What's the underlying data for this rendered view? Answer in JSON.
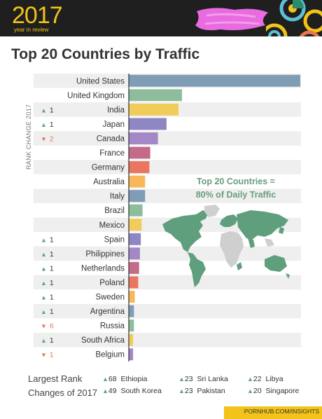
{
  "header": {
    "year": "2017",
    "subtitle": "year in review",
    "brand_color": "#f2c318"
  },
  "title": "Top 20 Countries by Traffic",
  "chart_data": {
    "type": "bar",
    "orientation": "horizontal",
    "ylabel": "RANK CHANGE 2017",
    "xlabel": "",
    "xlim": [
      0,
      100
    ],
    "grid": false,
    "categories": [
      "United States",
      "United Kingdom",
      "India",
      "Japan",
      "Canada",
      "France",
      "Germany",
      "Australia",
      "Italy",
      "Brazil",
      "Mexico",
      "Spain",
      "Philippines",
      "Netherlands",
      "Poland",
      "Sweden",
      "Argentina",
      "Russia",
      "South Africa",
      "Belgium"
    ],
    "values": [
      100,
      31,
      29,
      22,
      17,
      12.5,
      12,
      9.5,
      9.5,
      8,
      7.5,
      7,
      6.5,
      6,
      5.5,
      3.5,
      3,
      3,
      2.5,
      2.5
    ],
    "colors": [
      "#7f9eb5",
      "#8dbd9d",
      "#f1cc5b",
      "#8e87c4",
      "#a487c6",
      "#c46b8a",
      "#ea7660",
      "#f8b85a",
      "#7f9eb5",
      "#8dbd9d",
      "#f1cc5b",
      "#8e87c4",
      "#a487c6",
      "#c46b8a",
      "#ea7660",
      "#f8b85a",
      "#7f9eb5",
      "#8dbd9d",
      "#f1cc5b",
      "#a487c6"
    ],
    "rank_change": [
      "",
      "",
      "▲1",
      "▲1",
      "▼2",
      "",
      "",
      "",
      "",
      "",
      "",
      "▲1",
      "▲1",
      "▲1",
      "▲1",
      "▲1",
      "▲1",
      "▼6",
      "▲1",
      "▼1"
    ]
  },
  "overlay": {
    "line1": "Top 20 Countries =",
    "line2": "80% of Daily Traffic",
    "map_icon": "world-map-icon"
  },
  "footer": {
    "label_line1": "Largest Rank",
    "label_line2": "Changes of 2017",
    "items": [
      {
        "change": "68",
        "country": "Ethiopia"
      },
      {
        "change": "49",
        "country": "South Korea"
      },
      {
        "change": "23",
        "country": "Sri Lanka"
      },
      {
        "change": "23",
        "country": "Pakistan"
      },
      {
        "change": "22",
        "country": "Libya"
      },
      {
        "change": "20",
        "country": "Singapore"
      }
    ],
    "source": "PORNHUB.COM/INSIGHTS"
  },
  "colors": {
    "up": "#67a47a",
    "down": "#e4775f",
    "stripe": "#efefef"
  }
}
